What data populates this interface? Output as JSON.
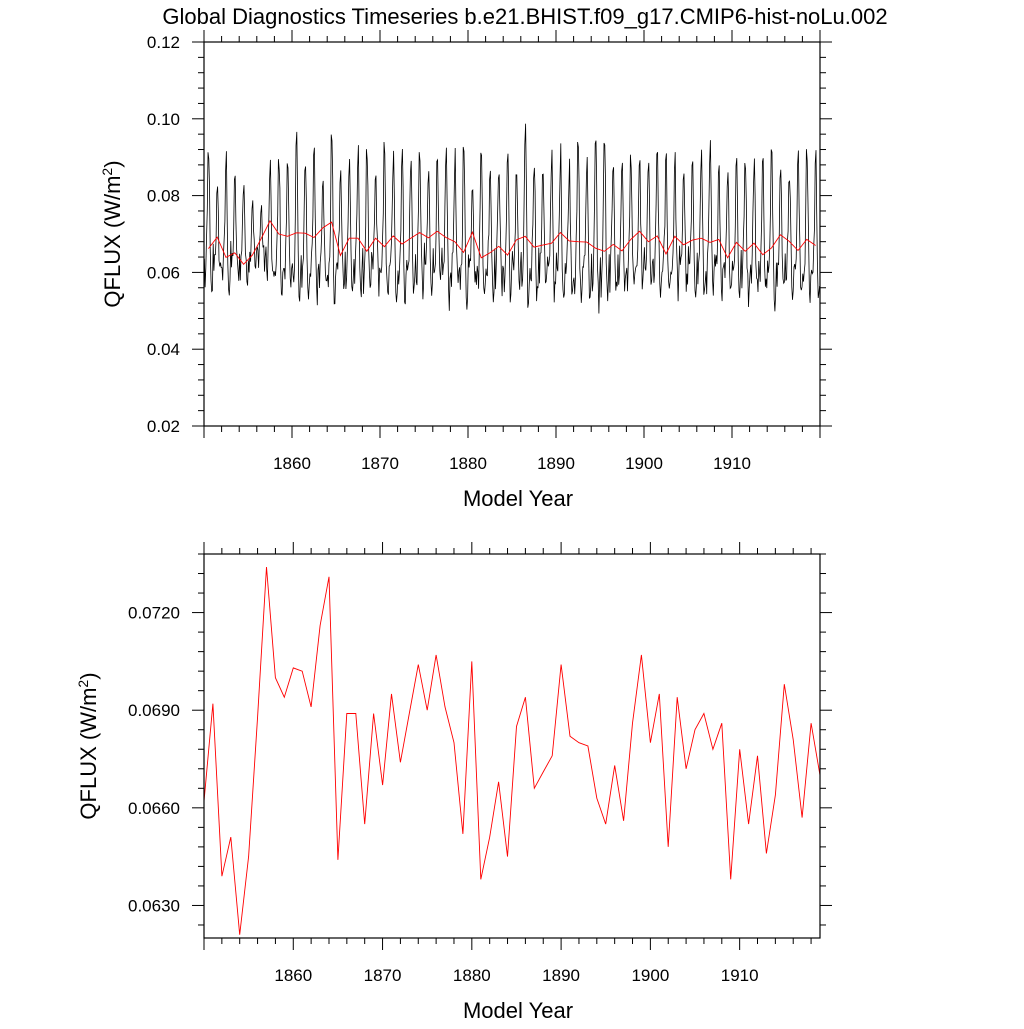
{
  "title": "Global Diagnostics Timeseries b.e21.BHIST.f09_g17.CMIP6-hist-noLu.002",
  "colors": {
    "monthly": "#000000",
    "annual": "#ff0000",
    "frame": "#000000",
    "background": "#ffffff"
  },
  "chart_data": [
    {
      "type": "line",
      "xlabel": "Model Year",
      "ylabel": "QFLUX (W/m",
      "ylabel_sup": "2",
      "ylabel_close": ")",
      "xlim": [
        1850,
        1920
      ],
      "ylim": [
        0.02,
        0.12
      ],
      "xticks": [
        1860,
        1870,
        1880,
        1890,
        1900,
        1910
      ],
      "xtick_labels": [
        "1860",
        "1870",
        "1880",
        "1890",
        "1900",
        "1910"
      ],
      "yticks": [
        0.02,
        0.04,
        0.06,
        0.08,
        0.1,
        0.12
      ],
      "ytick_labels": [
        "0.02",
        "0.04",
        "0.06",
        "0.08",
        "0.10",
        "0.12"
      ],
      "series": [
        {
          "kind": "monthly",
          "monthly_climatology": [
            0.063,
            0.059,
            0.061,
            0.066,
            0.074,
            0.087,
            0.089,
            0.078,
            0.065,
            0.057,
            0.055,
            0.058
          ],
          "annual_amplitude": [
            1.15,
            0.55,
            1.0,
            0.7,
            0.75,
            0.55,
            0.4,
            0.9,
            1.05,
            1.1,
            1.3,
            1.0,
            1.05,
            0.9,
            1.3,
            0.8,
            0.95,
            1.05,
            1.1,
            0.8,
            1.2,
            1.0,
            1.1,
            0.95,
            1.1,
            0.8,
            0.9,
            1.1,
            1.0,
            1.15,
            0.8,
            1.25,
            0.95,
            1.0,
            1.1,
            0.9,
            1.3,
            1.05,
            0.95,
            1.1,
            1.05,
            0.9,
            1.2,
            1.0,
            1.2,
            1.3,
            1.05,
            1.0,
            1.1,
            0.85,
            0.9,
            1.1,
            1.0,
            0.95,
            0.9,
            0.85,
            1.05,
            1.1,
            0.95,
            0.9,
            1.0,
            1.05,
            1.0,
            0.95,
            1.1,
            1.05,
            0.9,
            1.0,
            1.1,
            1.0
          ]
        },
        {
          "kind": "annual",
          "x": [
            1850.5,
            1851.5,
            1852.5,
            1853.5,
            1854.5,
            1855.5,
            1856.5,
            1857.5,
            1858.5,
            1859.5,
            1860.5,
            1861.5,
            1862.5,
            1863.5,
            1864.5,
            1865.5,
            1866.5,
            1867.5,
            1868.5,
            1869.5,
            1870.5,
            1871.5,
            1872.5,
            1873.5,
            1874.5,
            1875.5,
            1876.5,
            1877.5,
            1878.5,
            1879.5,
            1880.5,
            1881.5,
            1882.5,
            1883.5,
            1884.5,
            1885.5,
            1886.5,
            1887.5,
            1888.5,
            1889.5,
            1890.5,
            1891.5,
            1892.5,
            1893.5,
            1894.5,
            1895.5,
            1896.5,
            1897.5,
            1898.5,
            1899.5,
            1900.5,
            1901.5,
            1902.5,
            1903.5,
            1904.5,
            1905.5,
            1906.5,
            1907.5,
            1908.5,
            1909.5,
            1910.5,
            1911.5,
            1912.5,
            1913.5,
            1914.5,
            1915.5,
            1916.5,
            1917.5,
            1918.5,
            1919.5
          ],
          "values": [
            0.0662,
            0.0692,
            0.0639,
            0.0651,
            0.0621,
            0.0645,
            0.0688,
            0.0734,
            0.07,
            0.0694,
            0.0703,
            0.0702,
            0.0691,
            0.0716,
            0.0731,
            0.0644,
            0.0689,
            0.0689,
            0.0655,
            0.0689,
            0.0667,
            0.0695,
            0.0674,
            0.0689,
            0.0704,
            0.069,
            0.0707,
            0.0691,
            0.068,
            0.0652,
            0.0705,
            0.0638,
            0.0651,
            0.0668,
            0.0645,
            0.0685,
            0.0694,
            0.0666,
            0.0671,
            0.0676,
            0.0704,
            0.0682,
            0.068,
            0.0679,
            0.0663,
            0.0655,
            0.0673,
            0.0656,
            0.0686,
            0.0707,
            0.068,
            0.0695,
            0.0648,
            0.0694,
            0.0672,
            0.0684,
            0.0689,
            0.0678,
            0.0686,
            0.0638,
            0.0678,
            0.0655,
            0.0676,
            0.0646,
            0.0664,
            0.0698,
            0.0681,
            0.0657,
            0.0686,
            0.067
          ]
        }
      ]
    },
    {
      "type": "line",
      "xlabel": "Model Year",
      "ylabel": "QFLUX (W/m",
      "ylabel_sup": "2",
      "ylabel_close": ")",
      "xlim": [
        1850,
        1919
      ],
      "ylim": [
        0.062,
        0.0738
      ],
      "xticks": [
        1860,
        1870,
        1880,
        1890,
        1900,
        1910
      ],
      "xtick_labels": [
        "1860",
        "1870",
        "1880",
        "1890",
        "1900",
        "1910"
      ],
      "yticks": [
        0.063,
        0.066,
        0.069,
        0.072
      ],
      "ytick_labels": [
        "0.0630",
        "0.0660",
        "0.0690",
        "0.0720"
      ],
      "series": [
        {
          "kind": "annual",
          "x": [
            1850,
            1851,
            1852,
            1853,
            1854,
            1855,
            1856,
            1857,
            1858,
            1859,
            1860,
            1861,
            1862,
            1863,
            1864,
            1865,
            1866,
            1867,
            1868,
            1869,
            1870,
            1871,
            1872,
            1873,
            1874,
            1875,
            1876,
            1877,
            1878,
            1879,
            1880,
            1881,
            1882,
            1883,
            1884,
            1885,
            1886,
            1887,
            1888,
            1889,
            1890,
            1891,
            1892,
            1893,
            1894,
            1895,
            1896,
            1897,
            1898,
            1899,
            1900,
            1901,
            1902,
            1903,
            1904,
            1905,
            1906,
            1907,
            1908,
            1909,
            1910,
            1911,
            1912,
            1913,
            1914,
            1915,
            1916,
            1917,
            1918,
            1919
          ],
          "values": [
            0.0662,
            0.0692,
            0.0639,
            0.0651,
            0.0621,
            0.0645,
            0.0688,
            0.0734,
            0.07,
            0.0694,
            0.0703,
            0.0702,
            0.0691,
            0.0716,
            0.0731,
            0.0644,
            0.0689,
            0.0689,
            0.0655,
            0.0689,
            0.0667,
            0.0695,
            0.0674,
            0.0689,
            0.0704,
            0.069,
            0.0707,
            0.0691,
            0.068,
            0.0652,
            0.0705,
            0.0638,
            0.0651,
            0.0668,
            0.0645,
            0.0685,
            0.0694,
            0.0666,
            0.0671,
            0.0676,
            0.0704,
            0.0682,
            0.068,
            0.0679,
            0.0663,
            0.0655,
            0.0673,
            0.0656,
            0.0686,
            0.0707,
            0.068,
            0.0695,
            0.0648,
            0.0694,
            0.0672,
            0.0684,
            0.0689,
            0.0678,
            0.0686,
            0.0638,
            0.0678,
            0.0655,
            0.0676,
            0.0646,
            0.0664,
            0.0698,
            0.0681,
            0.0657,
            0.0686,
            0.067
          ]
        }
      ]
    }
  ]
}
